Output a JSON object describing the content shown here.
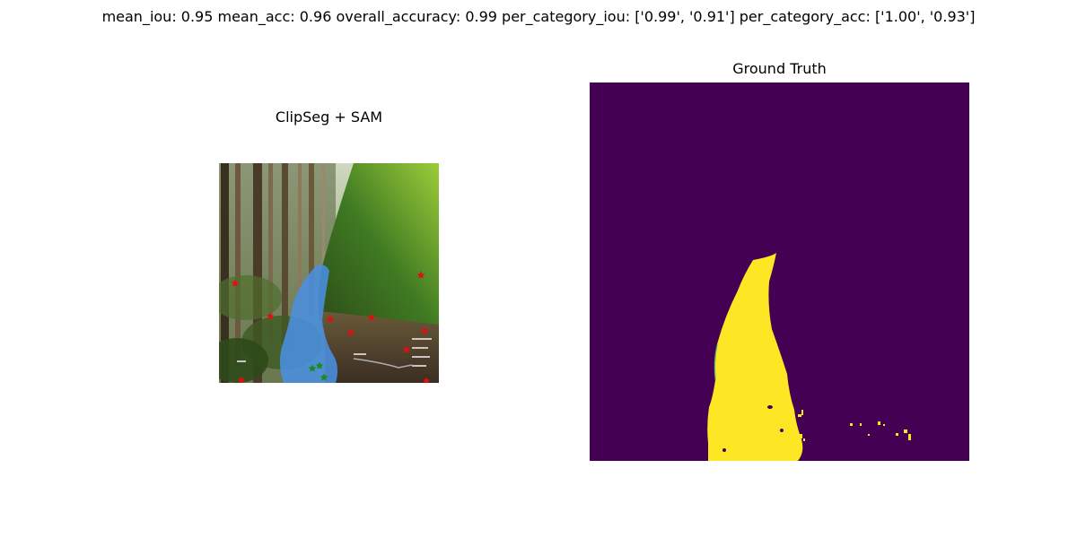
{
  "figure": {
    "suptitle": "mean_iou: 0.95  mean_acc: 0.96  overall_accuracy: 0.99  per_category_iou: ['0.99', '0.91']  per_category_acc: ['1.00', '0.93']"
  },
  "panels": [
    {
      "title": "ClipSeg + SAM",
      "content": "forest-trail photo with blue segmentation mask overlay and point prompts",
      "positive_point_color": "#1a8a1a",
      "negative_point_color": "#e01010",
      "mask_color": "#4a90e0"
    },
    {
      "title": "Ground Truth",
      "background_color": "#440154",
      "foreground_color": "#fde725"
    }
  ]
}
